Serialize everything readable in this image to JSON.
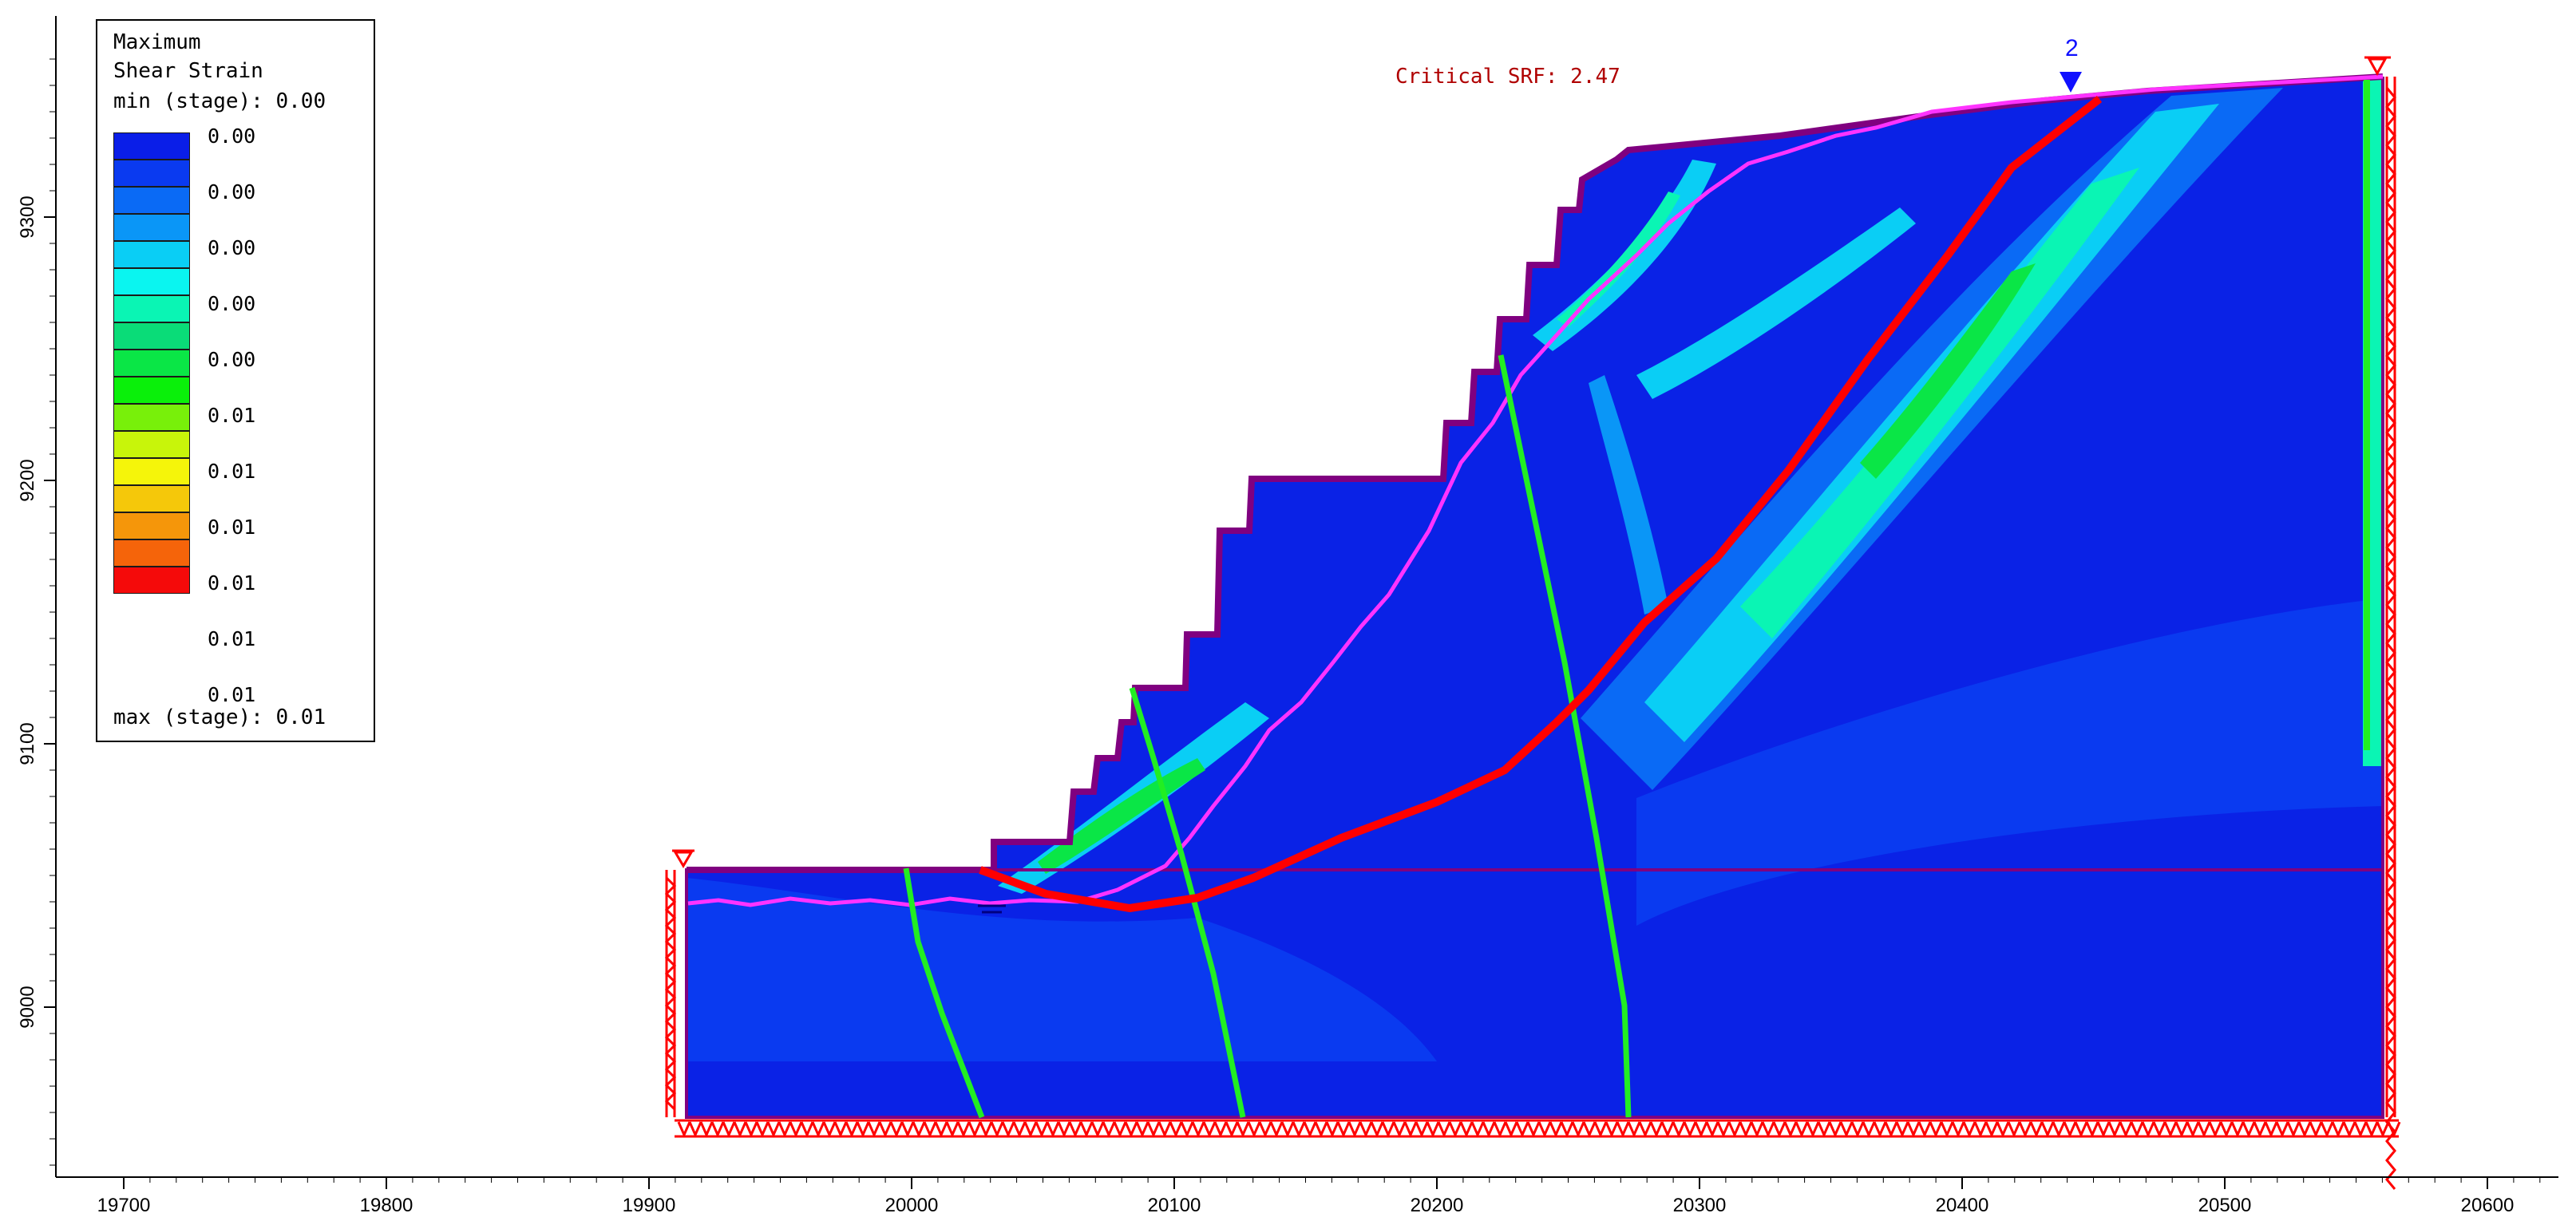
{
  "legend": {
    "title_line1": "Maximum",
    "title_line2": "Shear Strain",
    "min_label": "min (stage): 0.00",
    "max_label": "max (stage): 0.01",
    "colors": [
      "#0a1ee8",
      "#0a3af0",
      "#0a6af5",
      "#0a96f7",
      "#0acef5",
      "#0af5f0",
      "#0af5b4",
      "#0adc78",
      "#0ae646",
      "#0af00a",
      "#78f00a",
      "#c8f50a",
      "#f5f50a",
      "#f5c80a",
      "#f5960a",
      "#f5640a",
      "#f50a0a"
    ],
    "values": [
      "0.00",
      "0.00",
      "0.00",
      "0.00",
      "0.00",
      "0.01",
      "0.01",
      "0.01",
      "0.01",
      "0.01",
      "0.01"
    ]
  },
  "annotation": {
    "critical_srf": "Critical SRF: 2.47",
    "water_table_marker": "2"
  },
  "axes": {
    "x_ticks": [
      "19700",
      "19800",
      "19900",
      "20000",
      "20100",
      "20200",
      "20300",
      "20400",
      "20500",
      "20600"
    ],
    "y_ticks": [
      "9300",
      "9200",
      "9100",
      "9000"
    ]
  },
  "colors": {
    "background": "#ffffff",
    "model_fill": "#0a22e6",
    "boundary": "#800080",
    "water_table": "#ff33ff",
    "slip_surface": "#ff0000",
    "fault": "#22ee22",
    "restraint": "#ff0000",
    "text_annotation": "#b00000",
    "marker": "#1010ff"
  }
}
